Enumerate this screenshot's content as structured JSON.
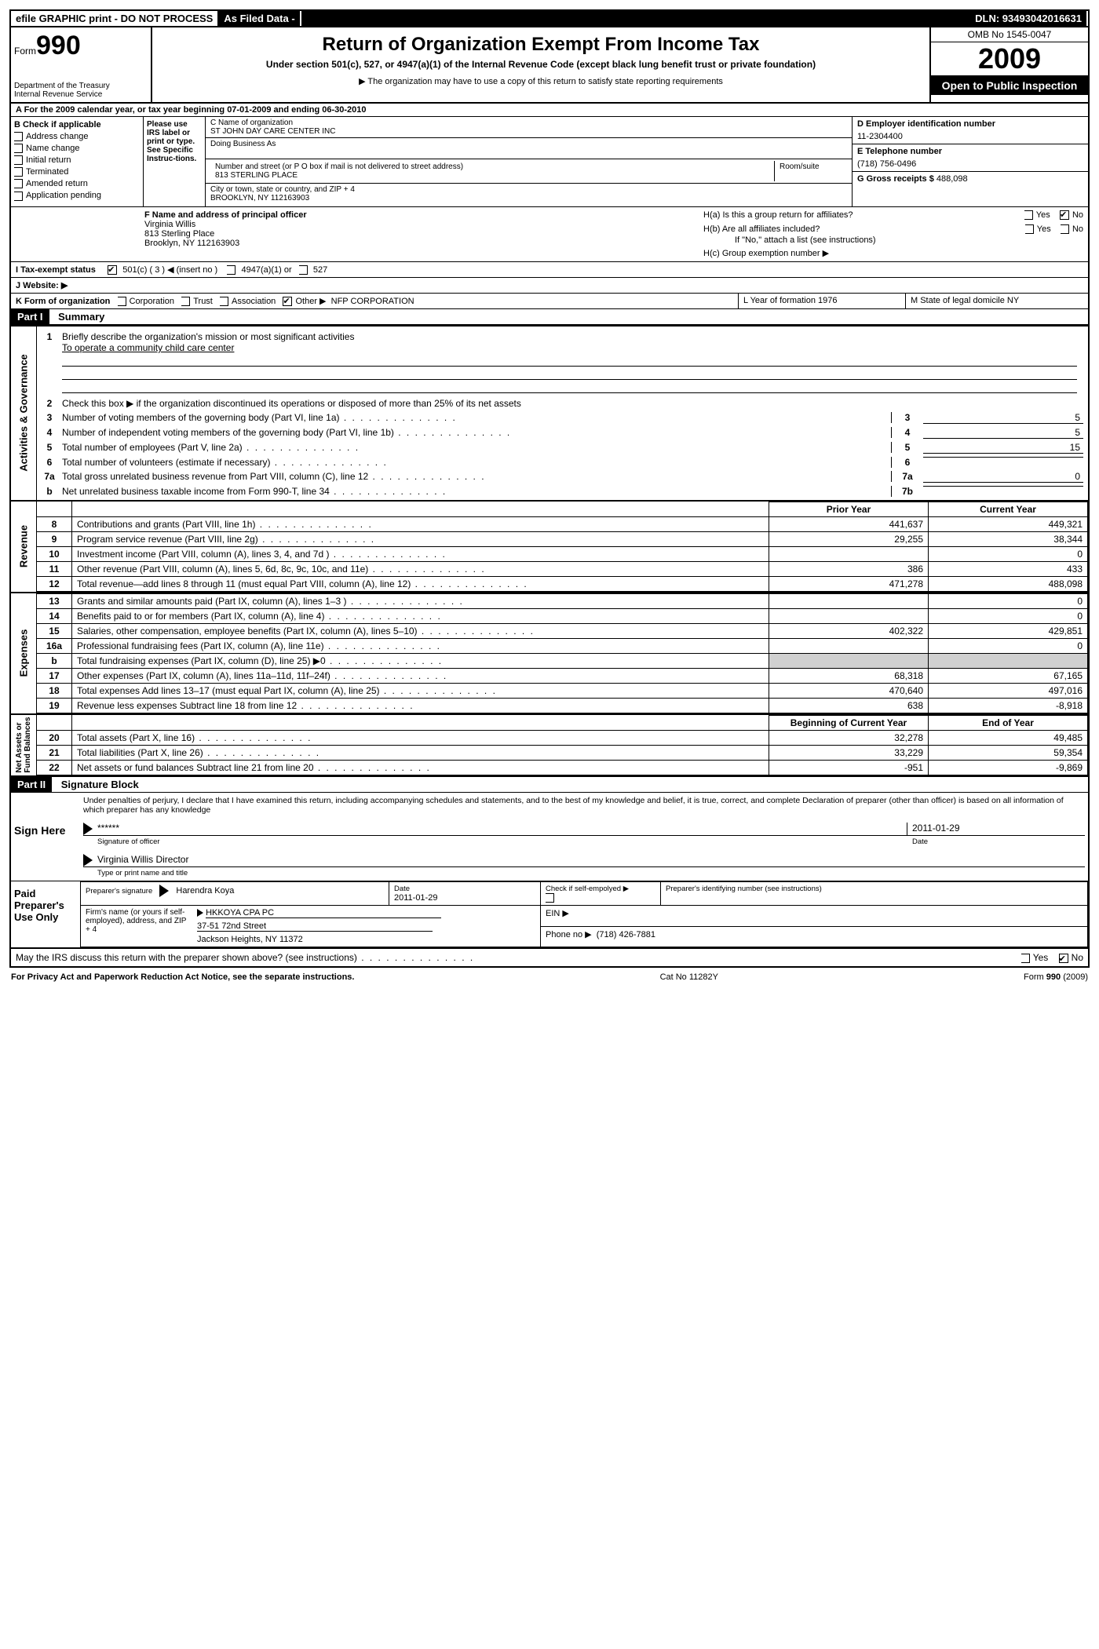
{
  "topbar": {
    "efile": "efile GRAPHIC print - DO NOT PROCESS",
    "asfiled": "As Filed Data -",
    "dln": "DLN: 93493042016631"
  },
  "header": {
    "form_word": "Form",
    "form_num": "990",
    "dept": "Department of the Treasury",
    "irs": "Internal Revenue Service",
    "title": "Return of Organization Exempt From Income Tax",
    "sub": "Under section 501(c), 527, or 4947(a)(1) of the Internal Revenue Code (except black lung benefit trust or private foundation)",
    "note": "▶ The organization may have to use a copy of this return to satisfy state reporting requirements",
    "omb": "OMB No 1545-0047",
    "year": "2009",
    "open": "Open to Public Inspection"
  },
  "rowA": "A  For the 2009 calendar year, or tax year beginning 07-01-2009    and ending 06-30-2010",
  "boxB": {
    "title": "B Check if applicable",
    "items": [
      "Address change",
      "Name change",
      "Initial return",
      "Terminated",
      "Amended return",
      "Application pending"
    ]
  },
  "irsLabel": "Please use IRS label or print or type. See Specific Instruc-tions.",
  "boxC": {
    "name_label": "C Name of organization",
    "name": "ST JOHN DAY CARE CENTER INC",
    "dba_label": "Doing Business As",
    "street_label": "Number and street (or P O box if mail is not delivered to street address)",
    "room_label": "Room/suite",
    "street": "813 STERLING PLACE",
    "city_label": "City or town, state or country, and ZIP + 4",
    "city": "BROOKLYN, NY  112163903"
  },
  "boxD": {
    "ein_label": "D Employer identification number",
    "ein": "11-2304400",
    "tel_label": "E Telephone number",
    "tel": "(718) 756-0496",
    "gross_label": "G Gross receipts $",
    "gross": "488,098"
  },
  "boxF": {
    "label": "F   Name and address of principal officer",
    "name": "Virginia Willis",
    "addr1": "813 Sterling Place",
    "addr2": "Brooklyn, NY  112163903"
  },
  "boxH": {
    "ha": "H(a)  Is this a group return for affiliates?",
    "hb": "H(b)  Are all affiliates included?",
    "hb_note": "If \"No,\" attach a list  (see instructions)",
    "hc": "H(c)   Group exemption number ▶"
  },
  "lineI": {
    "label": "I   Tax-exempt status",
    "opt1": "501(c) ( 3 ) ◀ (insert no )",
    "opt2": "4947(a)(1) or",
    "opt3": "527"
  },
  "lineJ": "J   Website: ▶",
  "lineK": {
    "left": "K Form of organization",
    "corp": "Corporation",
    "trust": "Trust",
    "assoc": "Association",
    "other": "Other ▶",
    "other_val": "NFP CORPORATION",
    "mid": "L Year of formation  1976",
    "right": "M State of legal domicile  NY"
  },
  "partI": {
    "header": "Part I",
    "title": "Summary",
    "l1_label": "Briefly describe the organization's mission or most significant activities",
    "l1_val": "To operate a community child care center",
    "l2": "Check this box ▶     if the organization discontinued its operations or disposed of more than 25% of its net assets",
    "rows": [
      {
        "n": "3",
        "desc": "Number of voting members of the governing body (Part VI, line 1a)",
        "an": "3",
        "av": "5"
      },
      {
        "n": "4",
        "desc": "Number of independent voting members of the governing body (Part VI, line 1b)",
        "an": "4",
        "av": "5"
      },
      {
        "n": "5",
        "desc": "Total number of employees (Part V, line 2a)",
        "an": "5",
        "av": "15"
      },
      {
        "n": "6",
        "desc": "Total number of volunteers (estimate if necessary)",
        "an": "6",
        "av": ""
      },
      {
        "n": "7a",
        "desc": "Total gross unrelated business revenue from Part VIII, column (C), line 12",
        "an": "7a",
        "av": "0"
      },
      {
        "n": "b",
        "desc": "Net unrelated business taxable income from Form 990-T, line 34",
        "an": "7b",
        "av": ""
      }
    ]
  },
  "finHeaders": {
    "prior": "Prior Year",
    "current": "Current Year"
  },
  "revenue": [
    {
      "n": "8",
      "desc": "Contributions and grants (Part VIII, line 1h)",
      "p": "441,637",
      "c": "449,321"
    },
    {
      "n": "9",
      "desc": "Program service revenue (Part VIII, line 2g)",
      "p": "29,255",
      "c": "38,344"
    },
    {
      "n": "10",
      "desc": "Investment income (Part VIII, column (A), lines 3, 4, and 7d )",
      "p": "",
      "c": "0"
    },
    {
      "n": "11",
      "desc": "Other revenue (Part VIII, column (A), lines 5, 6d, 8c, 9c, 10c, and 11e)",
      "p": "386",
      "c": "433"
    },
    {
      "n": "12",
      "desc": "Total revenue—add lines 8 through 11 (must equal Part VIII, column (A), line 12)",
      "p": "471,278",
      "c": "488,098"
    }
  ],
  "expenses": [
    {
      "n": "13",
      "desc": "Grants and similar amounts paid (Part IX, column (A), lines 1–3 )",
      "p": "",
      "c": "0"
    },
    {
      "n": "14",
      "desc": "Benefits paid to or for members (Part IX, column (A), line 4)",
      "p": "",
      "c": "0"
    },
    {
      "n": "15",
      "desc": "Salaries, other compensation, employee benefits (Part IX, column (A), lines 5–10)",
      "p": "402,322",
      "c": "429,851"
    },
    {
      "n": "16a",
      "desc": "Professional fundraising fees (Part IX, column (A), line 11e)",
      "p": "",
      "c": "0"
    },
    {
      "n": "b",
      "desc": "Total fundraising expenses (Part IX, column (D), line 25) ▶0",
      "p": "shade",
      "c": "shade"
    },
    {
      "n": "17",
      "desc": "Other expenses (Part IX, column (A), lines 11a–11d, 11f–24f)",
      "p": "68,318",
      "c": "67,165"
    },
    {
      "n": "18",
      "desc": "Total expenses  Add lines 13–17 (must equal Part IX, column (A), line 25)",
      "p": "470,640",
      "c": "497,016"
    },
    {
      "n": "19",
      "desc": "Revenue less expenses  Subtract line 18 from line 12",
      "p": "638",
      "c": "-8,918"
    }
  ],
  "naHeaders": {
    "begin": "Beginning of Current Year",
    "end": "End of Year"
  },
  "netassets": [
    {
      "n": "20",
      "desc": "Total assets (Part X, line 16)",
      "p": "32,278",
      "c": "49,485"
    },
    {
      "n": "21",
      "desc": "Total liabilities (Part X, line 26)",
      "p": "33,229",
      "c": "59,354"
    },
    {
      "n": "22",
      "desc": "Net assets or fund balances  Subtract line 21 from line 20",
      "p": "-951",
      "c": "-9,869"
    }
  ],
  "partII": {
    "header": "Part II",
    "title": "Signature Block",
    "declare": "Under penalties of perjury, I declare that I have examined this return, including accompanying schedules and statements, and to the best of my knowledge and belief, it is true, correct, and complete  Declaration of preparer (other than officer) is based on all information of which preparer has any knowledge",
    "sign_here": "Sign Here",
    "sig_mask": "******",
    "sig_of_officer": "Signature of officer",
    "sig_date": "2011-01-29",
    "date_label": "Date",
    "officer_name": "Virginia Willis  Director",
    "type_name": "Type or print name and title"
  },
  "preparer": {
    "label": "Paid Preparer's Use Only",
    "sig_label": "Preparer's signature",
    "name": "Harendra Koya",
    "date_label": "Date",
    "date": "2011-01-29",
    "check_label": "Check if self-empolyed ▶",
    "ptin_label": "Preparer's identifying number (see instructions)",
    "firm_label": "Firm's name (or yours if self-employed), address, and ZIP + 4",
    "firm_name": "HKKOYA CPA PC",
    "firm_addr1": "37-51 72nd Street",
    "firm_addr2": "Jackson Heights, NY  11372",
    "ein_label": "EIN ▶",
    "phone_label": "Phone no  ▶",
    "phone": "(718) 426-7881"
  },
  "discuss": "May the IRS discuss this return with the preparer shown above? (see instructions)",
  "footer": {
    "left": "For Privacy Act and Paperwork Reduction Act Notice, see the separate instructions.",
    "mid": "Cat No 11282Y",
    "right": "Form 990 (2009)"
  },
  "yes": "Yes",
  "no": "No"
}
